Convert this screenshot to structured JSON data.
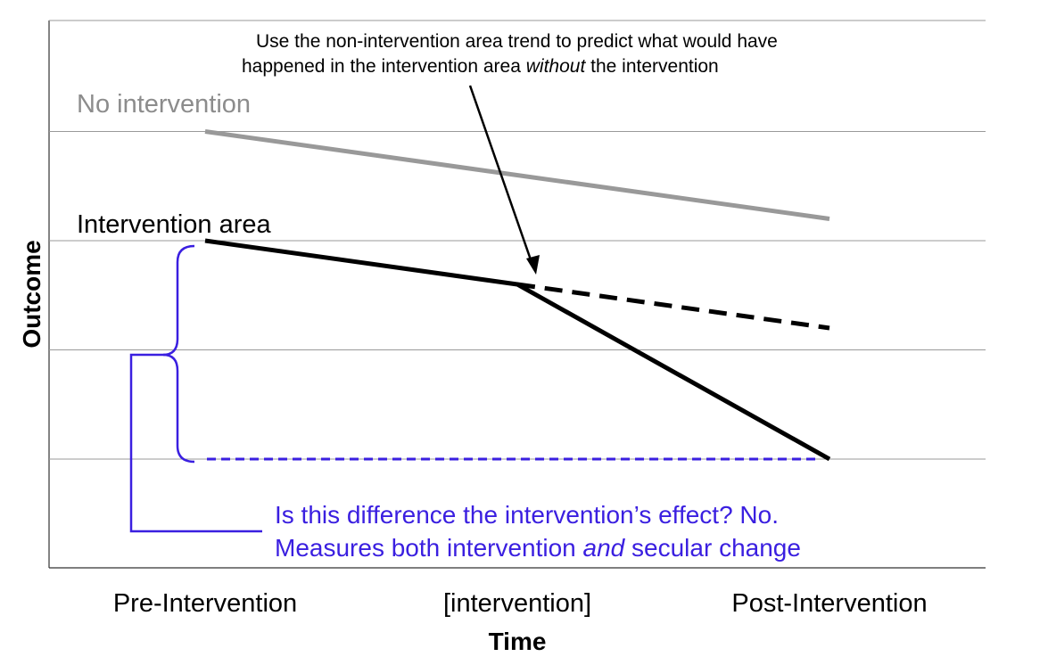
{
  "chart_data": {
    "type": "line",
    "xlabel": "Time",
    "ylabel": "Outcome",
    "categories": [
      "Pre-Intervention",
      "[intervention]",
      "Post-Intervention"
    ],
    "series": [
      {
        "name": "No intervention",
        "color": "#999999",
        "style": "solid",
        "x": [
          0,
          2
        ],
        "y": [
          4.0,
          3.2
        ]
      },
      {
        "name": "Intervention area",
        "color": "#000000",
        "style": "solid",
        "x": [
          0,
          1,
          2
        ],
        "y": [
          3.0,
          2.6,
          1.0
        ]
      },
      {
        "name": "projected trend",
        "color": "#000000",
        "style": "dashed",
        "x": [
          1,
          2
        ],
        "y": [
          2.6,
          2.2
        ]
      },
      {
        "name": "difference",
        "color": "#3a1fe0",
        "style": "dashed",
        "x": [
          0,
          2
        ],
        "y": [
          1.0,
          1.0
        ]
      }
    ],
    "ylim": [
      -1,
      5
    ],
    "grid": true,
    "gridlines_y": [
      1,
      2,
      3,
      4
    ]
  },
  "labels": {
    "no_intervention": "No intervention",
    "intervention_area": "Intervention area"
  },
  "annotation": {
    "line1": "Use the non-intervention area trend to predict what would have",
    "line2_pre": "happened in the intervention area ",
    "line2_em": "without",
    "line2_post": " the intervention"
  },
  "question": {
    "line1": "Is this difference the intervention’s effect? No.",
    "line2_pre": "Measures both intervention ",
    "line2_em": "and",
    "line2_post": " secular change"
  },
  "colors": {
    "accent": "#3a1fe0",
    "grid": "#999999",
    "no_intervention_line": "#999999"
  }
}
